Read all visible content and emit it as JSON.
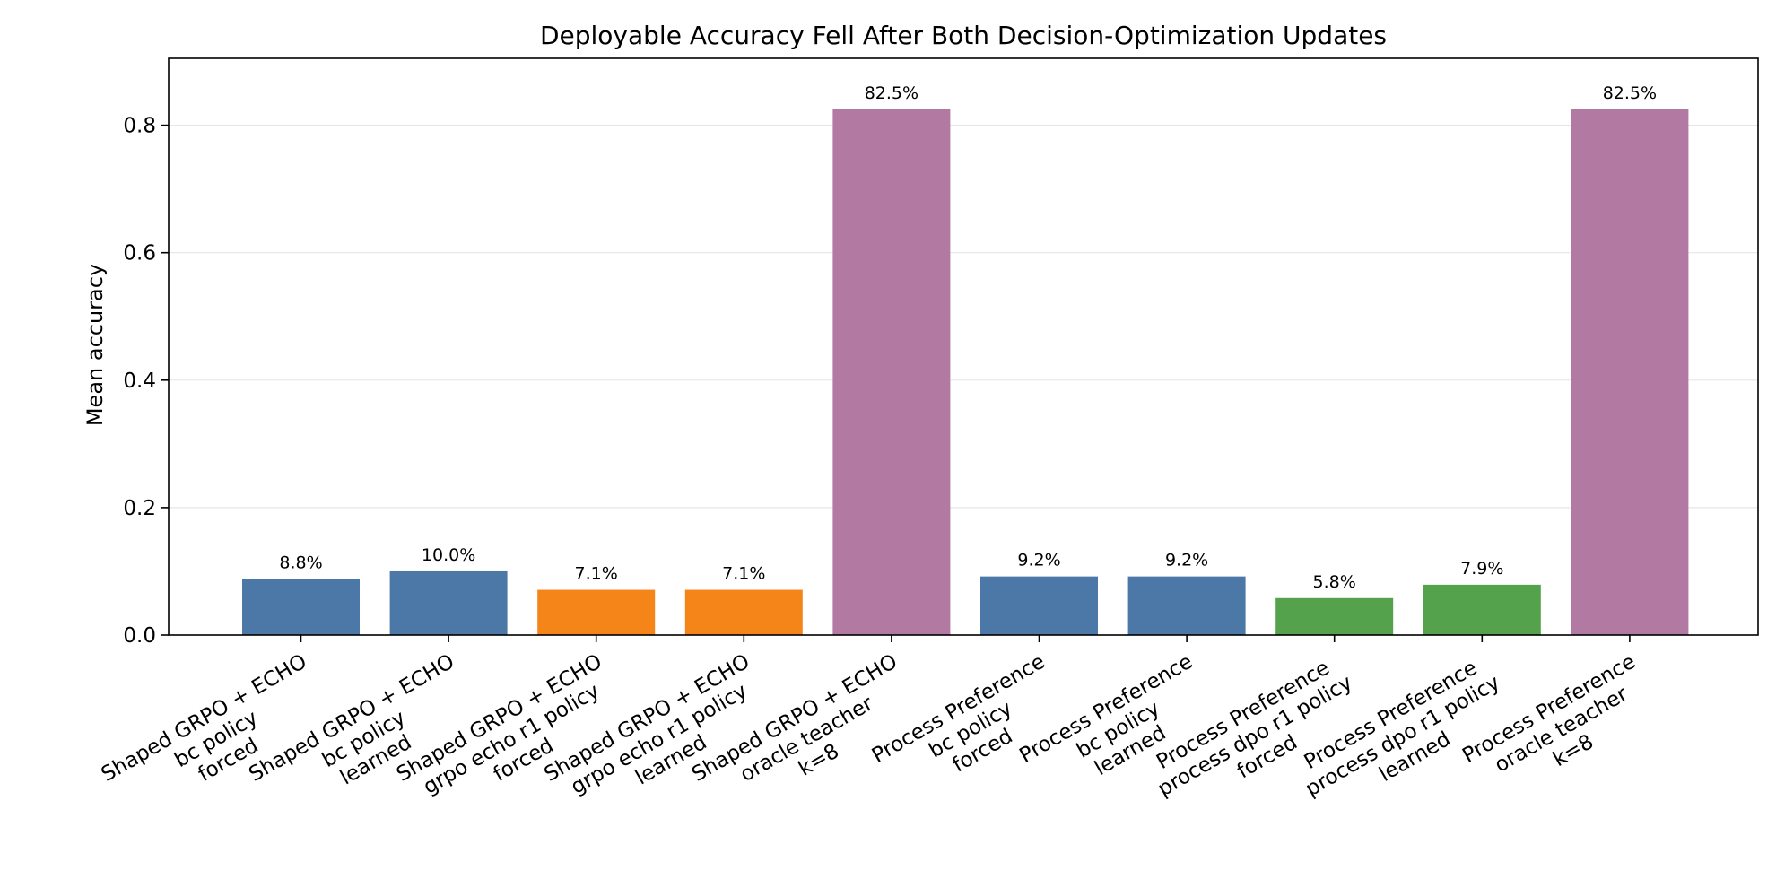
{
  "chart_data": {
    "type": "bar",
    "title": "Deployable Accuracy Fell After Both Decision-Optimization Updates",
    "xlabel": "",
    "ylabel": "Mean accuracy",
    "ylim": [
      0,
      0.905
    ],
    "yticks": [
      "0.0",
      "0.2",
      "0.4",
      "0.6",
      "0.8"
    ],
    "ytick_values": [
      0,
      0.2,
      0.4,
      0.6,
      0.8
    ],
    "grid": "y",
    "categories": [
      [
        "Shaped GRPO + ECHO",
        "bc policy",
        "forced"
      ],
      [
        "Shaped GRPO + ECHO",
        "bc policy",
        "learned"
      ],
      [
        "Shaped GRPO + ECHO",
        "grpo echo r1 policy",
        "forced"
      ],
      [
        "Shaped GRPO + ECHO",
        "grpo echo r1 policy",
        "learned"
      ],
      [
        "Shaped GRPO + ECHO",
        "oracle teacher",
        "k=8"
      ],
      [
        "Process Preference",
        "bc policy",
        "forced"
      ],
      [
        "Process Preference",
        "bc policy",
        "learned"
      ],
      [
        "Process Preference",
        "process dpo r1 policy",
        "forced"
      ],
      [
        "Process Preference",
        "process dpo r1 policy",
        "learned"
      ],
      [
        "Process Preference",
        "oracle teacher",
        "k=8"
      ]
    ],
    "values": [
      0.088,
      0.1,
      0.071,
      0.071,
      0.825,
      0.092,
      0.092,
      0.058,
      0.079,
      0.825
    ],
    "value_labels": [
      "8.8%",
      "10.0%",
      "7.1%",
      "7.1%",
      "82.5%",
      "9.2%",
      "9.2%",
      "5.8%",
      "7.9%",
      "82.5%"
    ],
    "colors": [
      "#4c78a8",
      "#4c78a8",
      "#f58518",
      "#f58518",
      "#b279a2",
      "#4c78a8",
      "#4c78a8",
      "#54a24b",
      "#54a24b",
      "#b279a2"
    ]
  }
}
